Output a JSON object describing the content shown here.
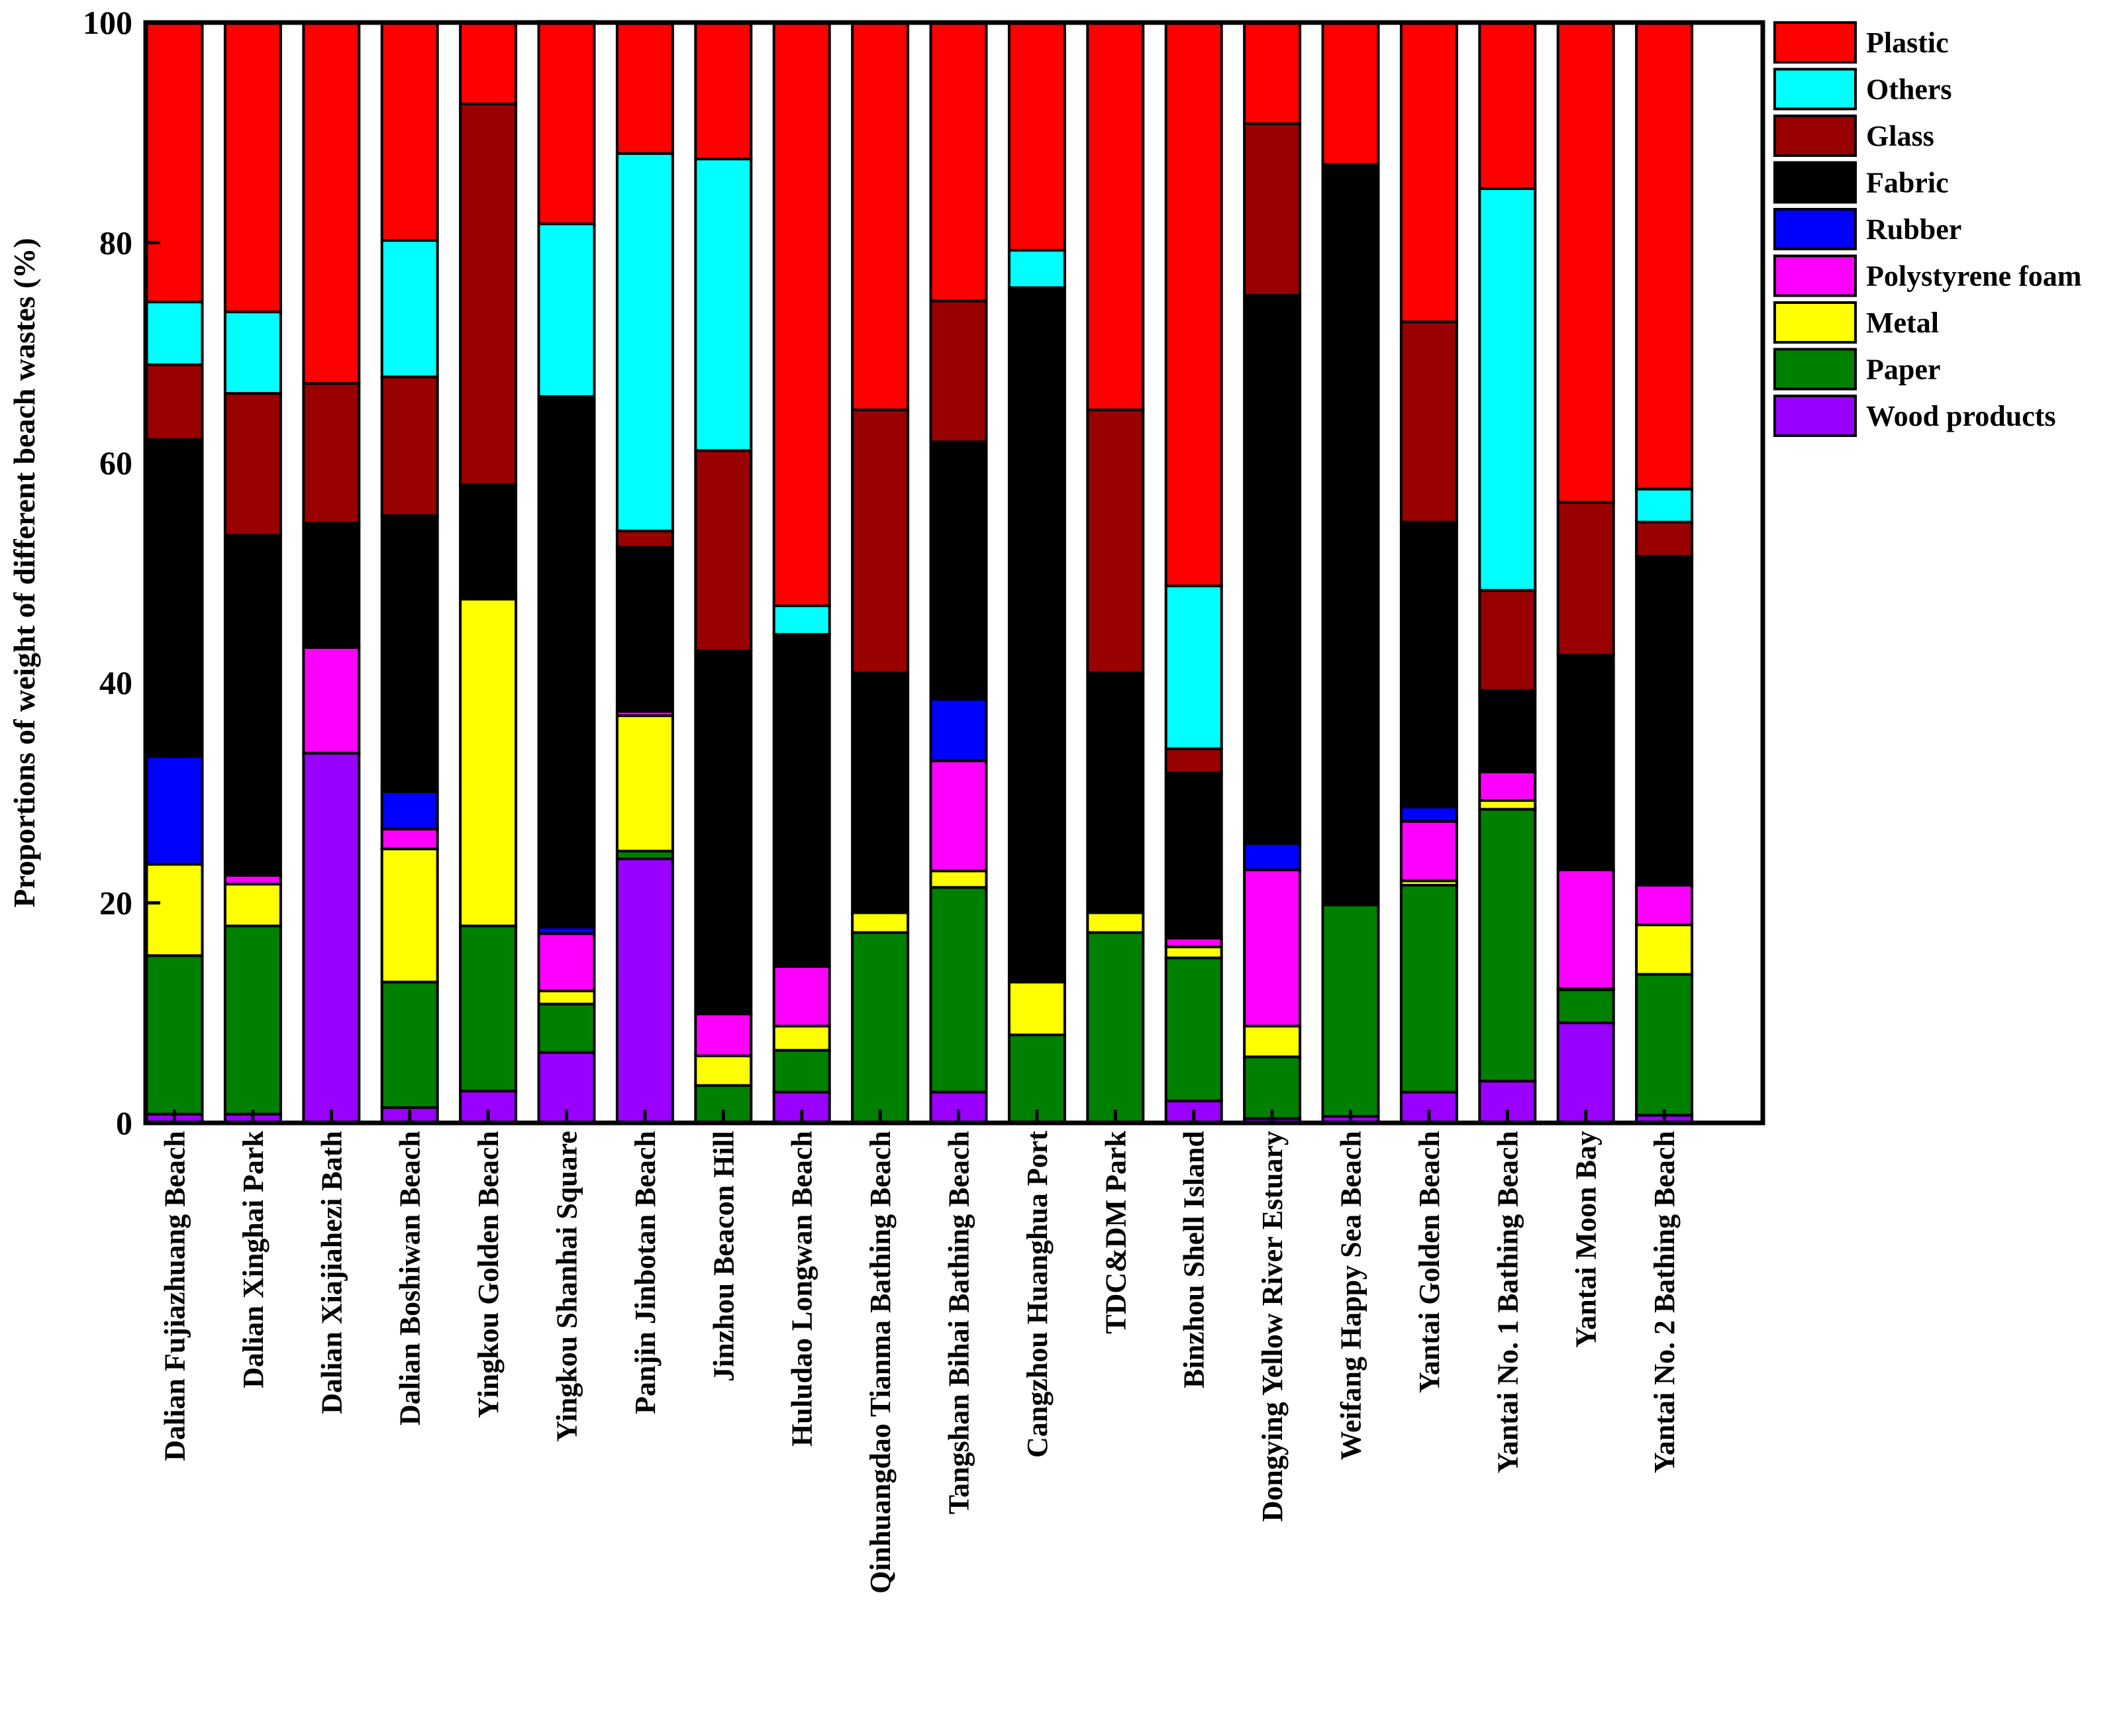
{
  "chart_data": {
    "type": "bar",
    "stacked": true,
    "title": "",
    "xlabel": "",
    "ylabel": "Proportions of weight of different beach wastes (%)",
    "ylim": [
      0,
      100
    ],
    "yticks": [
      0,
      20,
      40,
      60,
      80,
      100
    ],
    "grid": false,
    "legend_position": "right",
    "legend_order": [
      "Plastic",
      "Others",
      "Glass",
      "Fabric",
      "Rubber",
      "Polystyrene foam",
      "Metal",
      "Paper",
      "Wood products"
    ],
    "categories": [
      "Dalian Fujiazhuang Beach",
      "Dalian Xinghai Park",
      "Dalian Xiajiahezi Bath",
      "Dalian Boshiwan Beach",
      "Yingkou Golden Beach",
      "Yingkou Shanhai Square",
      "Panjin Jinbotan Beach",
      "Jinzhou Beacon Hill",
      "Huludao Longwan Beach",
      "Qinhuangdao Tianma Bathing Beach",
      "Tangshan Bihai Bathing Beach",
      "Cangzhou Huanghua Port",
      "TDC&DM Park",
      "Binzhou Shell Island",
      "Dongying Yellow River Estuary",
      "Weifang Happy Sea Beach",
      "Yantai Golden Beach",
      "Yantai No. 1 Bathing Beach",
      "Yantai Moon Bay",
      "Yantai No. 2 Bathing Beach"
    ],
    "series": [
      {
        "name": "Wood products",
        "color": "#9900FF",
        "values": [
          0.8,
          0.8,
          33.6,
          1.4,
          2.9,
          6.4,
          24.0,
          0,
          2.8,
          0,
          2.8,
          0,
          0,
          2.0,
          0.4,
          0.6,
          2.8,
          3.8,
          9.1,
          0.7
        ]
      },
      {
        "name": "Paper",
        "color": "#008000",
        "values": [
          14.4,
          17.1,
          0,
          11.4,
          15.0,
          4.4,
          0.7,
          3.4,
          3.8,
          17.3,
          18.6,
          8.0,
          17.3,
          13.0,
          5.6,
          19.2,
          18.8,
          24.7,
          3.0,
          12.8
        ]
      },
      {
        "name": "Metal",
        "color": "#FFFF00",
        "values": [
          8.3,
          3.8,
          0,
          12.1,
          29.7,
          1.2,
          12.3,
          2.7,
          2.2,
          1.8,
          1.5,
          4.8,
          1.8,
          1.0,
          2.8,
          0,
          0.4,
          0.8,
          0.1,
          4.5
        ]
      },
      {
        "name": "Polystyrene foam",
        "color": "#FF00FF",
        "values": [
          0,
          0.8,
          9.6,
          1.8,
          0,
          5.2,
          0.4,
          3.8,
          5.4,
          0,
          10.0,
          0,
          0,
          0.8,
          14.2,
          0,
          5.4,
          2.6,
          10.8,
          3.6
        ]
      },
      {
        "name": "Rubber",
        "color": "#0000FF",
        "values": [
          9.8,
          0,
          0,
          3.4,
          0,
          0.6,
          0,
          0,
          0,
          0,
          5.6,
          0,
          0,
          0,
          2.4,
          0,
          1.3,
          0,
          0,
          0
        ]
      },
      {
        "name": "Fabric",
        "color": "#000000",
        "values": [
          28.8,
          30.9,
          11.3,
          25.1,
          10.4,
          48.2,
          14.9,
          33.0,
          30.2,
          21.8,
          23.4,
          63.1,
          21.8,
          15.0,
          49.8,
          67.3,
          25.9,
          7.4,
          19.5,
          29.9
        ]
      },
      {
        "name": "Glass",
        "color": "#990000",
        "values": [
          6.8,
          12.9,
          12.7,
          12.6,
          34.6,
          0,
          1.5,
          18.2,
          0,
          23.9,
          12.8,
          0,
          23.9,
          2.2,
          15.6,
          0,
          18.2,
          9.1,
          13.9,
          3.1
        ]
      },
      {
        "name": "Others",
        "color": "#00FFFF",
        "values": [
          5.7,
          7.4,
          0,
          12.4,
          0,
          15.7,
          34.3,
          26.5,
          2.6,
          0,
          0,
          3.4,
          0,
          14.8,
          0,
          0,
          0,
          36.5,
          0,
          3.0
        ]
      },
      {
        "name": "Plastic",
        "color": "#FF0000",
        "values": [
          25.4,
          26.3,
          32.8,
          19.8,
          7.4,
          18.4,
          11.8,
          12.4,
          53.0,
          35.2,
          25.3,
          20.7,
          35.2,
          51.2,
          9.2,
          12.9,
          27.2,
          15.1,
          43.6,
          42.4
        ]
      }
    ]
  }
}
